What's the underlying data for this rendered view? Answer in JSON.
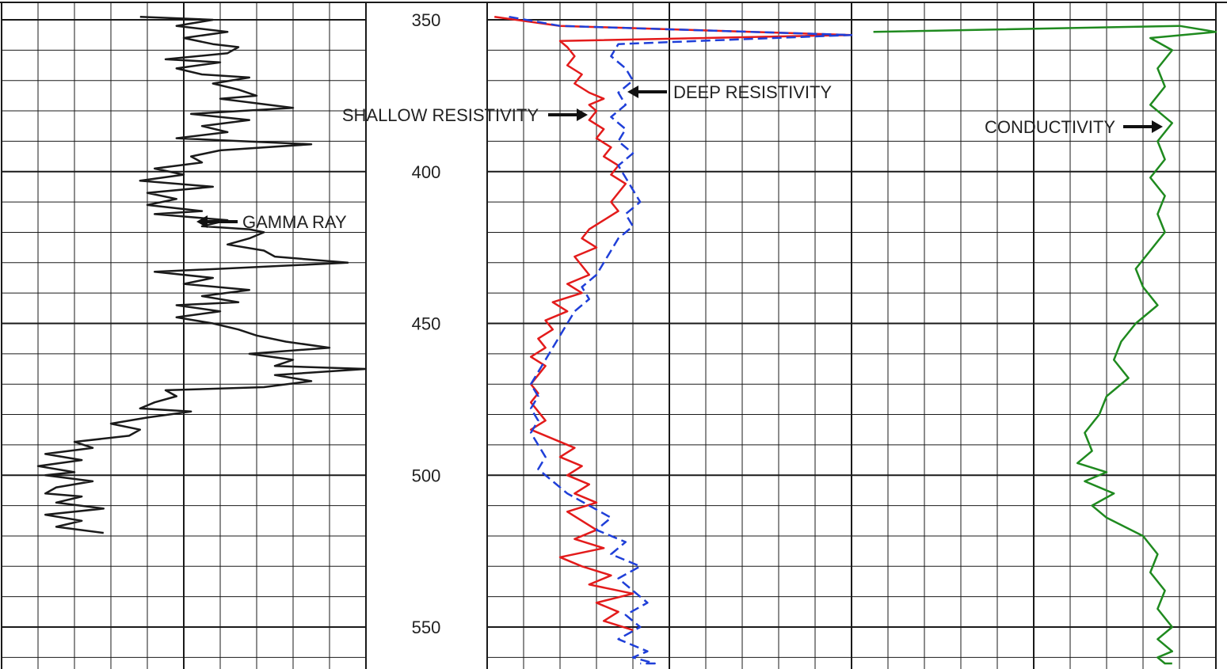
{
  "chart_data": {
    "type": "line",
    "title": "",
    "depth": {
      "ylim": [
        349,
        562
      ],
      "ticks": [
        350,
        400,
        450,
        500,
        550
      ],
      "minor_step": 10
    },
    "colors": {
      "gamma": "#1a1a1a",
      "shallow": "#e31b1b",
      "deep": "#1f3fd8",
      "conductivity": "#1f8a1f",
      "grid": "#1a1a1a"
    },
    "series": [
      {
        "key": "gamma",
        "name": "GAMMA RAY",
        "track": 0,
        "style": "solid",
        "x": [
          0.38,
          0.58,
          0.48,
          0.62,
          0.5,
          0.58,
          0.65,
          0.62,
          0.45,
          0.6,
          0.48,
          0.55,
          0.68,
          0.58,
          0.65,
          0.7,
          0.6,
          0.8,
          0.52,
          0.68,
          0.55,
          0.62,
          0.48,
          0.85,
          0.6,
          0.52,
          0.55,
          0.42,
          0.5,
          0.38,
          0.58,
          0.4,
          0.48,
          0.4,
          0.55,
          0.42,
          0.62,
          0.55,
          0.68,
          0.72,
          0.68,
          0.62,
          0.72,
          0.75,
          0.95,
          0.6,
          0.42,
          0.58,
          0.5,
          0.68,
          0.55,
          0.65,
          0.48,
          0.6,
          0.48,
          0.58,
          0.65,
          0.7,
          0.78,
          0.9,
          0.68,
          0.8,
          0.75,
          1.0,
          0.75,
          0.85,
          0.72,
          0.45,
          0.48,
          0.42,
          0.38,
          0.52,
          0.4,
          0.3,
          0.38,
          0.35,
          0.2,
          0.25,
          0.12,
          0.22,
          0.1,
          0.2,
          0.12,
          0.25,
          0.15,
          0.12,
          0.22,
          0.15,
          0.28,
          0.12,
          0.22,
          0.15,
          0.28
        ],
        "y": [
          349,
          350,
          352,
          354,
          356,
          358,
          359,
          361,
          363,
          364,
          366,
          368,
          369,
          371,
          373,
          375,
          376,
          379,
          381,
          383,
          385,
          387,
          389,
          391,
          393,
          395,
          397,
          399,
          401,
          403,
          405,
          407,
          409,
          411,
          413,
          414,
          416,
          418,
          419,
          420,
          422,
          424,
          426,
          428,
          430,
          432,
          433,
          435,
          437,
          439,
          441,
          443,
          444,
          446,
          448,
          450,
          452,
          454,
          456,
          458,
          460,
          462,
          464,
          465,
          467,
          469,
          471,
          472,
          474,
          476,
          478,
          479,
          481,
          483,
          485,
          487,
          489,
          491,
          493,
          495,
          497,
          499,
          500,
          502,
          504,
          506,
          507,
          509,
          511,
          513,
          515,
          517,
          519
        ]
      },
      {
        "key": "shallow",
        "name": "SHALLOW RESISTIVITY",
        "track": 1,
        "style": "solid",
        "x": [
          0.02,
          0.2,
          1.0,
          0.2,
          0.22,
          0.24,
          0.22,
          0.26,
          0.24,
          0.28,
          0.32,
          0.28,
          0.3,
          0.28,
          0.32,
          0.3,
          0.34,
          0.32,
          0.36,
          0.34,
          0.38,
          0.36,
          0.34,
          0.36,
          0.32,
          0.28,
          0.26,
          0.3,
          0.24,
          0.26,
          0.28,
          0.22,
          0.26,
          0.18,
          0.22,
          0.16,
          0.18,
          0.14,
          0.16,
          0.12,
          0.16,
          0.14,
          0.12,
          0.14,
          0.12,
          0.14,
          0.16,
          0.12,
          0.18,
          0.24,
          0.2,
          0.26,
          0.22,
          0.28,
          0.24,
          0.3,
          0.22,
          0.26,
          0.3,
          0.24,
          0.32,
          0.2,
          0.26,
          0.34,
          0.28,
          0.4,
          0.3,
          0.36,
          0.32,
          0.4
        ],
        "y": [
          349,
          352,
          355,
          357,
          359,
          362,
          365,
          368,
          371,
          374,
          376,
          378,
          380,
          383,
          386,
          389,
          392,
          395,
          398,
          401,
          404,
          407,
          410,
          413,
          416,
          419,
          422,
          425,
          428,
          431,
          434,
          437,
          440,
          443,
          446,
          449,
          452,
          455,
          458,
          461,
          464,
          467,
          470,
          473,
          476,
          479,
          482,
          485,
          488,
          491,
          494,
          497,
          500,
          503,
          506,
          509,
          512,
          515,
          518,
          521,
          524,
          527,
          530,
          533,
          536,
          539,
          542,
          545,
          548,
          551
        ]
      },
      {
        "key": "deep",
        "name": "DEEP RESISTIVITY",
        "track": 1,
        "style": "dashed",
        "x": [
          0.06,
          0.2,
          1.0,
          0.36,
          0.34,
          0.38,
          0.4,
          0.36,
          0.38,
          0.34,
          0.38,
          0.36,
          0.4,
          0.36,
          0.38,
          0.4,
          0.42,
          0.38,
          0.4,
          0.36,
          0.34,
          0.32,
          0.3,
          0.26,
          0.28,
          0.24,
          0.22,
          0.2,
          0.18,
          0.16,
          0.14,
          0.12,
          0.14,
          0.12,
          0.14,
          0.12,
          0.14,
          0.16,
          0.14,
          0.18,
          0.22,
          0.28,
          0.34,
          0.3,
          0.38,
          0.34,
          0.42,
          0.36,
          0.4,
          0.44,
          0.38,
          0.42,
          0.36,
          0.44,
          0.4,
          0.46,
          0.42
        ],
        "y": [
          349,
          352,
          355,
          358,
          362,
          366,
          370,
          374,
          378,
          382,
          386,
          390,
          394,
          398,
          402,
          406,
          410,
          414,
          418,
          422,
          426,
          430,
          434,
          438,
          442,
          446,
          450,
          454,
          458,
          462,
          466,
          470,
          474,
          478,
          482,
          486,
          490,
          494,
          498,
          502,
          506,
          510,
          514,
          518,
          522,
          526,
          530,
          534,
          538,
          542,
          546,
          550,
          554,
          558,
          560,
          562,
          562
        ]
      },
      {
        "key": "conductivity",
        "name": "CONDUCTIVITY",
        "track": 2,
        "style": "solid",
        "x": [
          0.06,
          0.9,
          1.0,
          0.82,
          0.88,
          0.84,
          0.86,
          0.82,
          0.88,
          0.84,
          0.86,
          0.82,
          0.86,
          0.84,
          0.86,
          0.82,
          0.78,
          0.8,
          0.84,
          0.78,
          0.74,
          0.72,
          0.76,
          0.7,
          0.68,
          0.64,
          0.66,
          0.62,
          0.7,
          0.64,
          0.72,
          0.66,
          0.7,
          0.8,
          0.84,
          0.82,
          0.86,
          0.84,
          0.88,
          0.84,
          0.88,
          0.84,
          0.86,
          0.88
        ],
        "y": [
          354,
          352,
          354,
          356,
          360,
          366,
          372,
          378,
          384,
          390,
          396,
          402,
          408,
          414,
          420,
          426,
          432,
          438,
          444,
          450,
          456,
          462,
          468,
          474,
          480,
          486,
          492,
          496,
          499,
          502,
          506,
          510,
          514,
          520,
          526,
          532,
          538,
          544,
          550,
          554,
          558,
          560,
          562,
          562
        ]
      }
    ]
  },
  "annotations": [
    {
      "key": "gamma",
      "label": "GAMMA RAY"
    },
    {
      "key": "shallow",
      "label": "SHALLOW RESISTIVITY"
    },
    {
      "key": "deep",
      "label": "DEEP RESISTIVITY"
    },
    {
      "key": "conductivity",
      "label": "CONDUCTIVITY"
    }
  ]
}
